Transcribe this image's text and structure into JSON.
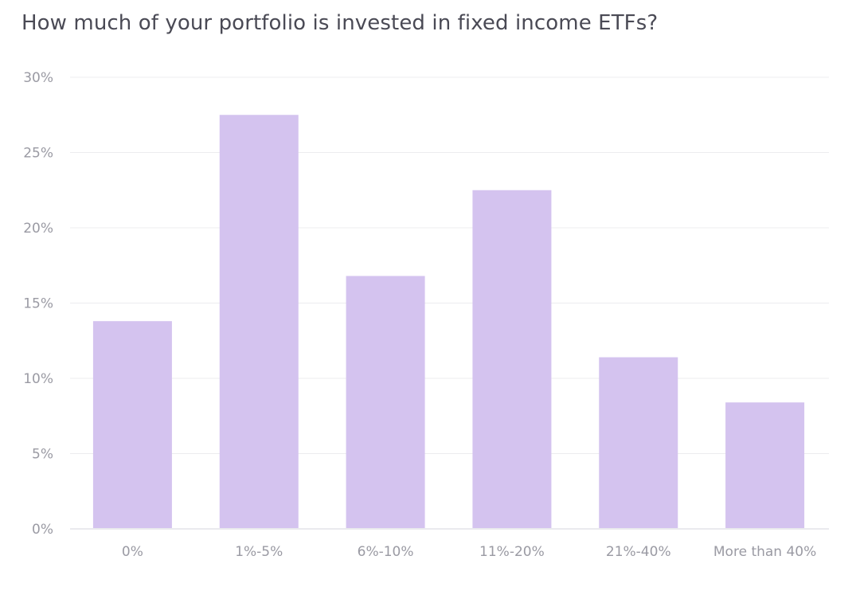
{
  "chart_data": {
    "type": "bar",
    "title": "How much of your portfolio is invested in fixed income ETFs?",
    "categories": [
      "0%",
      "1%-5%",
      "6%-10%",
      "11%-20%",
      "21%-40%",
      "More than 40%"
    ],
    "values": [
      13.8,
      27.5,
      16.8,
      22.5,
      11.4,
      8.4
    ],
    "xlabel": "",
    "ylabel": "",
    "ylim": [
      0,
      30
    ],
    "yticks": [
      0,
      5,
      10,
      15,
      20,
      25,
      30
    ],
    "ytick_labels": [
      "0%",
      "5%",
      "10%",
      "15%",
      "20%",
      "25%",
      "30%"
    ],
    "grid": true,
    "legend": "none",
    "bar_color": "#d4c3ef"
  }
}
